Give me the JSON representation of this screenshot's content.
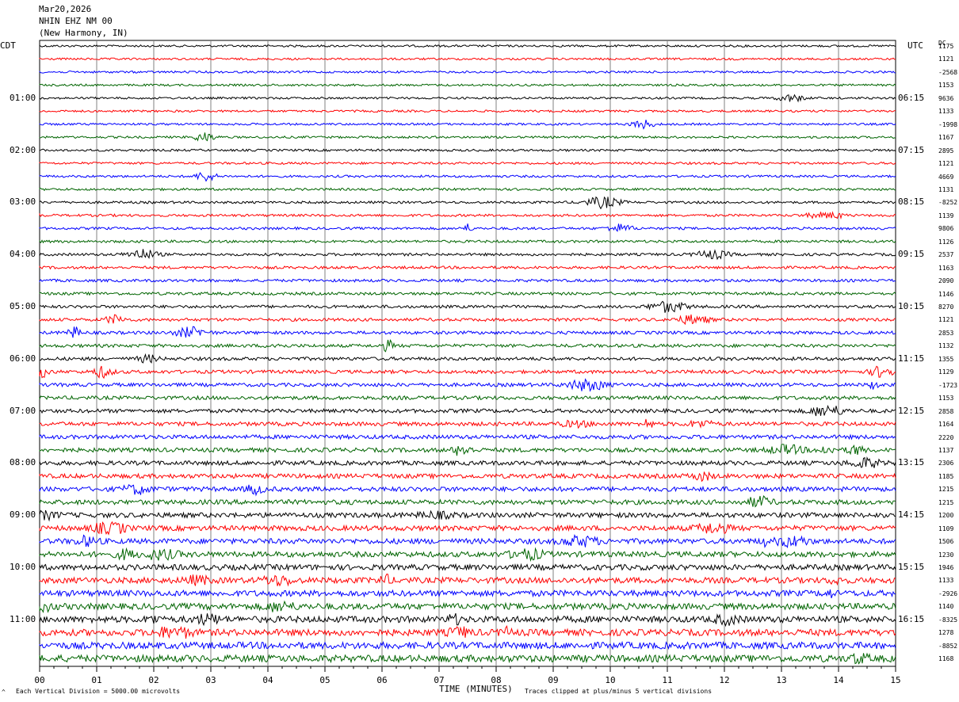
{
  "header": {
    "date": "Mar20,2026",
    "station": "NHIN EHZ NM 00",
    "location": "(New Harmony, IN)"
  },
  "left_timezone": "CDT",
  "right_timezone": "UTC",
  "dc_header": "DC",
  "footer": {
    "scale_note": "Each Vertical Division = 5000.00 microvolts",
    "clip_note": "Traces clipped at plus/minus 5 vertical divisions",
    "corner_mark": "^"
  },
  "chart_data": {
    "type": "line",
    "xlabel": "TIME (MINUTES)",
    "xlim": [
      0,
      15
    ],
    "x_ticks": [
      "00",
      "01",
      "02",
      "03",
      "04",
      "05",
      "06",
      "07",
      "08",
      "09",
      "10",
      "11",
      "12",
      "13",
      "14",
      "15"
    ],
    "rows_per_hour": 4,
    "trace_colors": [
      "#000000",
      "#ff0000",
      "#0000ff",
      "#006400"
    ],
    "left_time_labels": [
      "01:00",
      "02:00",
      "03:00",
      "04:00",
      "05:00",
      "06:00",
      "07:00",
      "08:00",
      "09:00",
      "10:00",
      "11:00"
    ],
    "right_time_labels": [
      "06:15",
      "07:15",
      "08:15",
      "09:15",
      "10:15",
      "11:15",
      "12:15",
      "13:15",
      "14:15",
      "15:15",
      "16:15"
    ],
    "dc_offsets": [
      "1175",
      "1121",
      "-2568",
      "1153",
      "9636",
      "1133",
      "-1998",
      "1167",
      "2895",
      "1121",
      "4669",
      "1131",
      "-8252",
      "1139",
      "9806",
      "1126",
      "2537",
      "1163",
      "2090",
      "1146",
      "8270",
      "1121",
      "2853",
      "1132",
      "1355",
      "1129",
      "-1723",
      "1153",
      "2858",
      "1164",
      "2220",
      "1137",
      "2306",
      "1185",
      "1215",
      "1215",
      "1200",
      "1109",
      "1506",
      "1230",
      "1946",
      "1133",
      "-2926",
      "1140",
      "-8325",
      "1278",
      "-8852",
      "1168"
    ]
  }
}
